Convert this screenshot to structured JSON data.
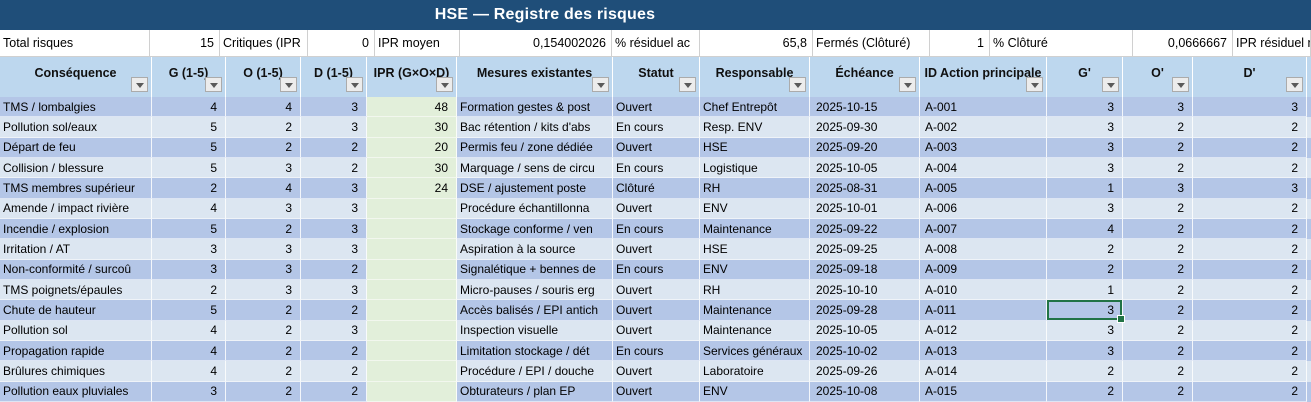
{
  "title": "HSE — Registre des risques",
  "stats": [
    {
      "label": "Total risques",
      "value": "15"
    },
    {
      "label": "Critiques (IPR",
      "value": "0"
    },
    {
      "label": "IPR moyen",
      "value": "0,154002026"
    },
    {
      "label": "% résiduel ac",
      "value": "65,8"
    },
    {
      "label": "Fermés (Clôturé)",
      "value": "1"
    },
    {
      "label": "% Clôturé",
      "value": "0,0666667"
    },
    {
      "label": "IPR résiduel moye",
      "value": ""
    }
  ],
  "columns": [
    {
      "label": "Conséquence"
    },
    {
      "label": "G (1-5)"
    },
    {
      "label": "O (1-5)"
    },
    {
      "label": "D (1-5)"
    },
    {
      "label": "IPR (G×O×D)"
    },
    {
      "label": "Mesures existantes"
    },
    {
      "label": "Statut"
    },
    {
      "label": "Responsable"
    },
    {
      "label": "Échéance"
    },
    {
      "label": "ID Action principale"
    },
    {
      "label": "G'"
    },
    {
      "label": "O'"
    },
    {
      "label": "D'"
    }
  ],
  "rows": [
    {
      "consequence": "TMS / lombalgies",
      "g": "4",
      "o": "4",
      "d": "3",
      "ipr": "48",
      "mesures": "Formation gestes & post",
      "statut": "Ouvert",
      "responsable": "Chef Entrepôt",
      "echeance": "2025-10-15",
      "id_action": "A-001",
      "g2": "3",
      "o2": "3",
      "d2": "3"
    },
    {
      "consequence": "Pollution sol/eaux",
      "g": "5",
      "o": "2",
      "d": "3",
      "ipr": "30",
      "mesures": "Bac rétention / kits d'abs",
      "statut": "En cours",
      "responsable": "Resp. ENV",
      "echeance": "2025-09-30",
      "id_action": "A-002",
      "g2": "3",
      "o2": "2",
      "d2": "2"
    },
    {
      "consequence": "Départ de feu",
      "g": "5",
      "o": "2",
      "d": "2",
      "ipr": "20",
      "mesures": "Permis feu / zone dédiée",
      "statut": "Ouvert",
      "responsable": "HSE",
      "echeance": "2025-09-20",
      "id_action": "A-003",
      "g2": "3",
      "o2": "2",
      "d2": "2"
    },
    {
      "consequence": "Collision / blessure",
      "g": "5",
      "o": "3",
      "d": "2",
      "ipr": "30",
      "mesures": "Marquage / sens de circu",
      "statut": "En cours",
      "responsable": "Logistique",
      "echeance": "2025-10-05",
      "id_action": "A-004",
      "g2": "3",
      "o2": "2",
      "d2": "2"
    },
    {
      "consequence": "TMS membres supérieur",
      "g": "2",
      "o": "4",
      "d": "3",
      "ipr": "24",
      "mesures": "DSE / ajustement poste",
      "statut": "Clôturé",
      "responsable": "RH",
      "echeance": "2025-08-31",
      "id_action": "A-005",
      "g2": "1",
      "o2": "3",
      "d2": "3"
    },
    {
      "consequence": "Amende / impact rivière",
      "g": "4",
      "o": "3",
      "d": "3",
      "ipr": "",
      "mesures": "Procédure échantillonna",
      "statut": "Ouvert",
      "responsable": "ENV",
      "echeance": "2025-10-01",
      "id_action": "A-006",
      "g2": "3",
      "o2": "2",
      "d2": "2"
    },
    {
      "consequence": "Incendie / explosion",
      "g": "5",
      "o": "2",
      "d": "3",
      "ipr": "",
      "mesures": "Stockage conforme / ven",
      "statut": "En cours",
      "responsable": "Maintenance",
      "echeance": "2025-09-22",
      "id_action": "A-007",
      "g2": "4",
      "o2": "2",
      "d2": "2"
    },
    {
      "consequence": "Irritation / AT",
      "g": "3",
      "o": "3",
      "d": "3",
      "ipr": "",
      "mesures": "Aspiration à la source",
      "statut": "Ouvert",
      "responsable": "HSE",
      "echeance": "2025-09-25",
      "id_action": "A-008",
      "g2": "2",
      "o2": "2",
      "d2": "2"
    },
    {
      "consequence": "Non-conformité / surcoû",
      "g": "3",
      "o": "3",
      "d": "2",
      "ipr": "",
      "mesures": "Signalétique + bennes de",
      "statut": "En cours",
      "responsable": "ENV",
      "echeance": "2025-09-18",
      "id_action": "A-009",
      "g2": "2",
      "o2": "2",
      "d2": "2"
    },
    {
      "consequence": "TMS poignets/épaules",
      "g": "2",
      "o": "3",
      "d": "3",
      "ipr": "",
      "mesures": "Micro-pauses / souris erg",
      "statut": "Ouvert",
      "responsable": "RH",
      "echeance": "2025-10-10",
      "id_action": "A-010",
      "g2": "1",
      "o2": "2",
      "d2": "2"
    },
    {
      "consequence": "Chute de hauteur",
      "g": "5",
      "o": "2",
      "d": "2",
      "ipr": "",
      "mesures": "Accès balisés / EPI antich",
      "statut": "Ouvert",
      "responsable": "Maintenance",
      "echeance": "2025-09-28",
      "id_action": "A-011",
      "g2": "3",
      "o2": "2",
      "d2": "2"
    },
    {
      "consequence": "Pollution sol",
      "g": "4",
      "o": "2",
      "d": "3",
      "ipr": "",
      "mesures": "Inspection visuelle",
      "statut": "Ouvert",
      "responsable": "Maintenance",
      "echeance": "2025-10-05",
      "id_action": "A-012",
      "g2": "3",
      "o2": "2",
      "d2": "2"
    },
    {
      "consequence": "Propagation rapide",
      "g": "4",
      "o": "2",
      "d": "2",
      "ipr": "",
      "mesures": "Limitation stockage / dét",
      "statut": "En cours",
      "responsable": "Services généraux",
      "echeance": "2025-10-02",
      "id_action": "A-013",
      "g2": "3",
      "o2": "2",
      "d2": "2"
    },
    {
      "consequence": "Brûlures chimiques",
      "g": "4",
      "o": "2",
      "d": "2",
      "ipr": "",
      "mesures": "Procédure / EPI / douche",
      "statut": "Ouvert",
      "responsable": "Laboratoire",
      "echeance": "2025-09-26",
      "id_action": "A-014",
      "g2": "2",
      "o2": "2",
      "d2": "2"
    },
    {
      "consequence": "Pollution eaux pluviales",
      "g": "3",
      "o": "2",
      "d": "2",
      "ipr": "",
      "mesures": "Obturateurs / plan EP",
      "statut": "Ouvert",
      "responsable": "ENV",
      "echeance": "2025-10-08",
      "id_action": "A-015",
      "g2": "2",
      "o2": "2",
      "d2": "2"
    }
  ],
  "selection": {
    "row_index": 10,
    "column_key": "g2",
    "row_id": "A-011"
  },
  "colors": {
    "title_bar": "#1F4E79",
    "header_bg": "#BDD7EE",
    "band_dark": "#B4C6E7",
    "band_light": "#DCE6F1",
    "ipr_green": "#E2EFDA",
    "selection_green": "#217346"
  }
}
